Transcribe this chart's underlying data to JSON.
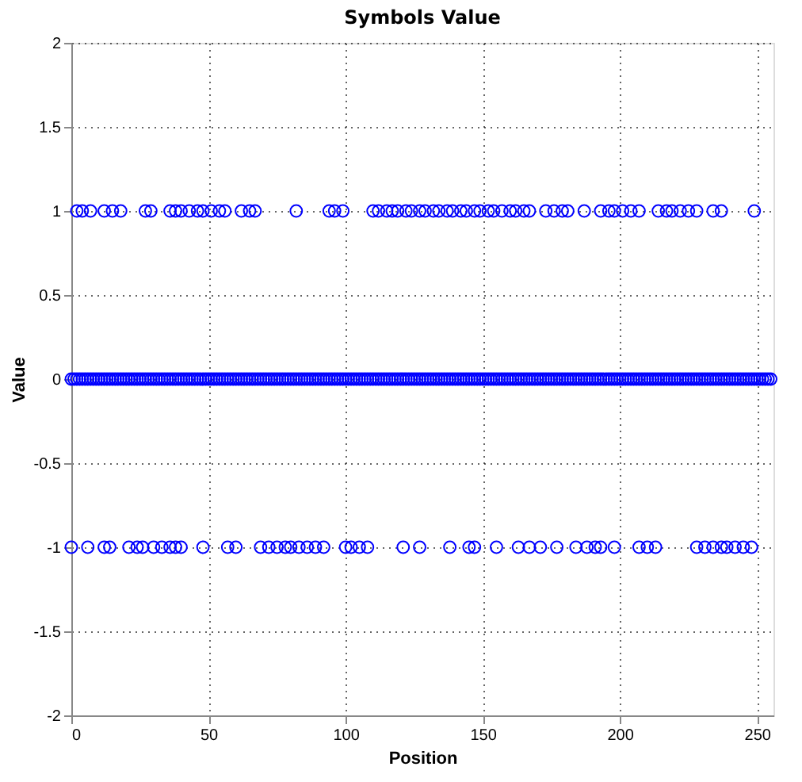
{
  "chart_data": {
    "type": "scatter",
    "title": "Symbols Value",
    "xlabel": "Position",
    "ylabel": "Value",
    "xlim": [
      0,
      256
    ],
    "ylim": [
      -2,
      2
    ],
    "xticks": [
      0,
      50,
      100,
      150,
      200,
      250
    ],
    "yticks": [
      -2,
      -1.5,
      -1,
      -0.5,
      0,
      0.5,
      1,
      1.5,
      2
    ],
    "grid": true,
    "marker": "circle",
    "series": [
      {
        "color": "#0000ff",
        "x": [
          2,
          4,
          7,
          12,
          15,
          18,
          27,
          29,
          36,
          38,
          40,
          43,
          46,
          48,
          51,
          54,
          56,
          62,
          65,
          67,
          82,
          94,
          96,
          99,
          110,
          112,
          115,
          117,
          119,
          122,
          124,
          127,
          129,
          132,
          134,
          137,
          139,
          142,
          144,
          147,
          149,
          152,
          154,
          157,
          160,
          162,
          165,
          167,
          173,
          176,
          179,
          181,
          187,
          193,
          196,
          198,
          201,
          204,
          207,
          214,
          217,
          219,
          222,
          225,
          228,
          234,
          237,
          249
        ],
        "values": [
          1,
          1,
          1,
          1,
          1,
          1,
          1,
          1,
          1,
          1,
          1,
          1,
          1,
          1,
          1,
          1,
          1,
          1,
          1,
          1,
          1,
          1,
          1,
          1,
          1,
          1,
          1,
          1,
          1,
          1,
          1,
          1,
          1,
          1,
          1,
          1,
          1,
          1,
          1,
          1,
          1,
          1,
          1,
          1,
          1,
          1,
          1,
          1,
          1,
          1,
          1,
          1,
          1,
          1,
          1,
          1,
          1,
          1,
          1,
          1,
          1,
          1,
          1,
          1,
          1,
          1,
          1,
          1
        ]
      },
      {
        "color": "#0000ff",
        "x": [
          0,
          6,
          12,
          14,
          21,
          24,
          26,
          30,
          33,
          36,
          38,
          40,
          48,
          57,
          60,
          69,
          72,
          75,
          78,
          80,
          83,
          86,
          89,
          92,
          100,
          102,
          105,
          108,
          121,
          127,
          138,
          145,
          147,
          155,
          163,
          167,
          171,
          177,
          184,
          188,
          191,
          193,
          198,
          207,
          210,
          213,
          228,
          231,
          234,
          237,
          239,
          242,
          245,
          248
        ],
        "values": [
          -1,
          -1,
          -1,
          -1,
          -1,
          -1,
          -1,
          -1,
          -1,
          -1,
          -1,
          -1,
          -1,
          -1,
          -1,
          -1,
          -1,
          -1,
          -1,
          -1,
          -1,
          -1,
          -1,
          -1,
          -1,
          -1,
          -1,
          -1,
          -1,
          -1,
          -1,
          -1,
          -1,
          -1,
          -1,
          -1,
          -1,
          -1,
          -1,
          -1,
          -1,
          -1,
          -1,
          -1,
          -1,
          -1,
          -1,
          -1,
          -1,
          -1,
          -1,
          -1,
          -1,
          -1
        ]
      },
      {
        "color": "#0000ff",
        "x": [
          0,
          1,
          2,
          3,
          4,
          5,
          6,
          7,
          8,
          9,
          10,
          11,
          12,
          13,
          14,
          15,
          16,
          17,
          18,
          19,
          20,
          21,
          22,
          23,
          24,
          25,
          26,
          27,
          28,
          29,
          30,
          31,
          32,
          33,
          34,
          35,
          36,
          37,
          38,
          39,
          40,
          41,
          42,
          43,
          44,
          45,
          46,
          47,
          48,
          49,
          50,
          51,
          52,
          53,
          54,
          55,
          56,
          57,
          58,
          59,
          60,
          61,
          62,
          63,
          64,
          65,
          66,
          67,
          68,
          69,
          70,
          71,
          72,
          73,
          74,
          75,
          76,
          77,
          78,
          79,
          80,
          81,
          82,
          83,
          84,
          85,
          86,
          87,
          88,
          89,
          90,
          91,
          92,
          93,
          94,
          95,
          96,
          97,
          98,
          99,
          100,
          101,
          102,
          103,
          104,
          105,
          106,
          107,
          108,
          109,
          110,
          111,
          112,
          113,
          114,
          115,
          116,
          117,
          118,
          119,
          120,
          121,
          122,
          123,
          124,
          125,
          126,
          127,
          128,
          129,
          130,
          131,
          132,
          133,
          134,
          135,
          136,
          137,
          138,
          139,
          140,
          141,
          142,
          143,
          144,
          145,
          146,
          147,
          148,
          149,
          150,
          151,
          152,
          153,
          154,
          155,
          156,
          157,
          158,
          159,
          160,
          161,
          162,
          163,
          164,
          165,
          166,
          167,
          168,
          169,
          170,
          171,
          172,
          173,
          174,
          175,
          176,
          177,
          178,
          179,
          180,
          181,
          182,
          183,
          184,
          185,
          186,
          187,
          188,
          189,
          190,
          191,
          192,
          193,
          194,
          195,
          196,
          197,
          198,
          199,
          200,
          201,
          202,
          203,
          204,
          205,
          206,
          207,
          208,
          209,
          210,
          211,
          212,
          213,
          214,
          215,
          216,
          217,
          218,
          219,
          220,
          221,
          222,
          223,
          224,
          225,
          226,
          227,
          228,
          229,
          230,
          231,
          232,
          233,
          234,
          235,
          236,
          237,
          238,
          239,
          240,
          241,
          242,
          243,
          244,
          245,
          246,
          247,
          248,
          249,
          250,
          251,
          252,
          253,
          254,
          255
        ],
        "values": [
          0,
          0,
          0,
          0,
          0,
          0,
          0,
          0,
          0,
          0,
          0,
          0,
          0,
          0,
          0,
          0,
          0,
          0,
          0,
          0,
          0,
          0,
          0,
          0,
          0,
          0,
          0,
          0,
          0,
          0,
          0,
          0,
          0,
          0,
          0,
          0,
          0,
          0,
          0,
          0,
          0,
          0,
          0,
          0,
          0,
          0,
          0,
          0,
          0,
          0,
          0,
          0,
          0,
          0,
          0,
          0,
          0,
          0,
          0,
          0,
          0,
          0,
          0,
          0,
          0,
          0,
          0,
          0,
          0,
          0,
          0,
          0,
          0,
          0,
          0,
          0,
          0,
          0,
          0,
          0,
          0,
          0,
          0,
          0,
          0,
          0,
          0,
          0,
          0,
          0,
          0,
          0,
          0,
          0,
          0,
          0,
          0,
          0,
          0,
          0,
          0,
          0,
          0,
          0,
          0,
          0,
          0,
          0,
          0,
          0,
          0,
          0,
          0,
          0,
          0,
          0,
          0,
          0,
          0,
          0,
          0,
          0,
          0,
          0,
          0,
          0,
          0,
          0,
          0,
          0,
          0,
          0,
          0,
          0,
          0,
          0,
          0,
          0,
          0,
          0,
          0,
          0,
          0,
          0,
          0,
          0,
          0,
          0,
          0,
          0,
          0,
          0,
          0,
          0,
          0,
          0,
          0,
          0,
          0,
          0,
          0,
          0,
          0,
          0,
          0,
          0,
          0,
          0,
          0,
          0,
          0,
          0,
          0,
          0,
          0,
          0,
          0,
          0,
          0,
          0,
          0,
          0,
          0,
          0,
          0,
          0,
          0,
          0,
          0,
          0,
          0,
          0,
          0,
          0,
          0,
          0,
          0,
          0,
          0,
          0,
          0,
          0,
          0,
          0,
          0,
          0,
          0,
          0,
          0,
          0,
          0,
          0,
          0,
          0,
          0,
          0,
          0,
          0,
          0,
          0,
          0,
          0,
          0,
          0,
          0,
          0,
          0,
          0,
          0,
          0,
          0,
          0,
          0,
          0,
          0,
          0,
          0,
          0,
          0,
          0,
          0,
          0,
          0,
          0,
          0,
          0,
          0,
          0,
          0,
          0,
          0,
          0,
          0,
          0,
          0,
          0
        ]
      }
    ]
  }
}
